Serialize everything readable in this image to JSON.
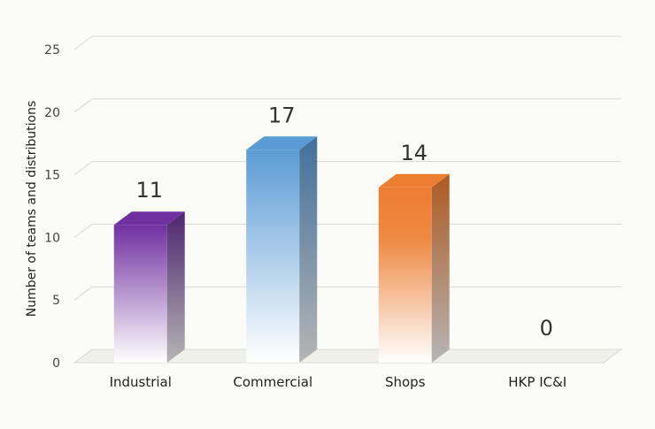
{
  "chart_data": {
    "type": "bar",
    "style": "3d-column",
    "categories": [
      "Industrial",
      "Commercial",
      "Shops",
      "HKP IC&I"
    ],
    "values": [
      11,
      17,
      14,
      0
    ],
    "title": "",
    "xlabel": "",
    "ylabel": "Number of teams and distributions",
    "ylim": [
      0,
      25
    ],
    "yticks": [
      0,
      5,
      10,
      15,
      20,
      25
    ],
    "grid": true,
    "legend": "none",
    "colors": [
      "#7030a0",
      "#5b9bd5",
      "#ed7d31",
      "#a5a5a5"
    ]
  }
}
